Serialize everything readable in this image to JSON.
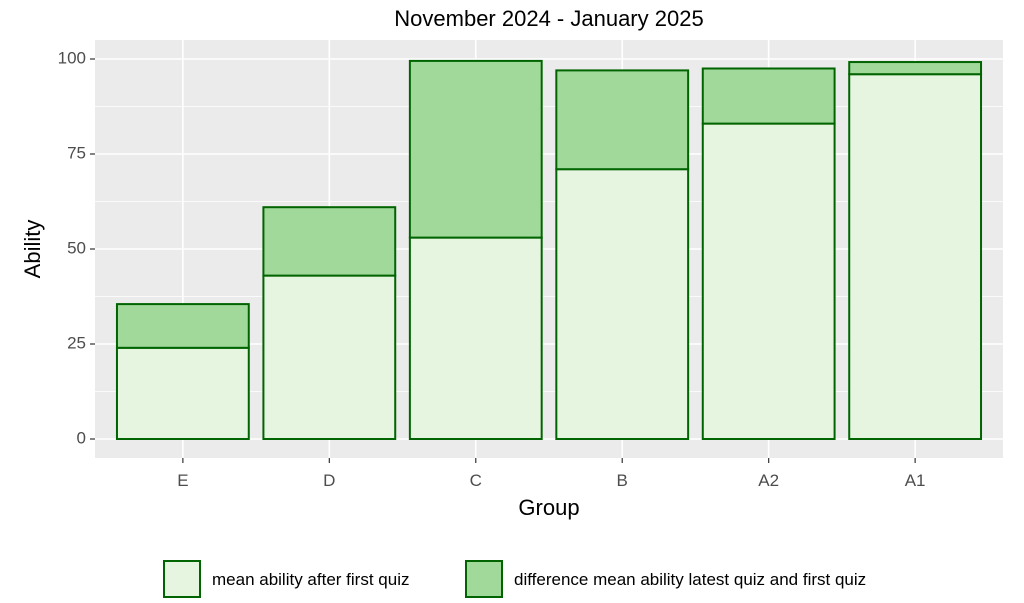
{
  "chart_data": {
    "type": "bar",
    "stacked": true,
    "title": "November 2024 - January 2025",
    "xlabel": "Group",
    "ylabel": "Ability",
    "categories": [
      "E",
      "D",
      "C",
      "B",
      "A2",
      "A1"
    ],
    "series": [
      {
        "name": "mean ability after first quiz",
        "values": [
          24,
          43,
          53,
          71,
          83,
          96
        ],
        "color": "#e5f5e0"
      },
      {
        "name": "difference mean ability latest quiz and first quiz",
        "values": [
          11.5,
          18,
          46.5,
          26,
          14.5,
          3.2
        ],
        "color": "#a1d99b"
      }
    ],
    "ylim": [
      -5,
      105
    ],
    "yticks": [
      0,
      25,
      50,
      75,
      100
    ],
    "grid": true,
    "legend_position": "bottom",
    "colors": {
      "panel_background": "#ebebeb",
      "grid_major": "#ffffff",
      "bar_border": "#006400"
    }
  }
}
